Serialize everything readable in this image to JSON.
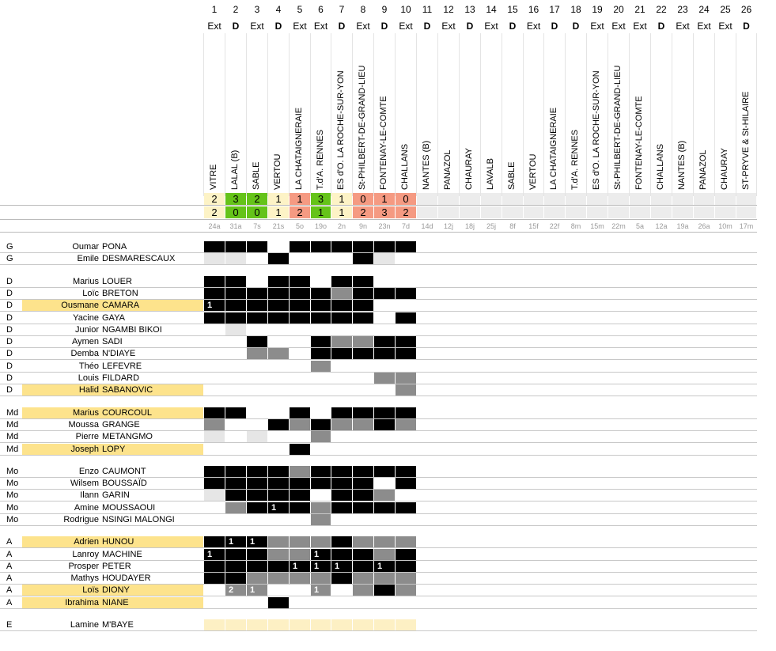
{
  "matches": [
    {
      "num": "1",
      "type": "Ext",
      "team": "VITRE",
      "scored": "2",
      "conceded": "2",
      "date": "24a",
      "result": "draw"
    },
    {
      "num": "2",
      "type": "D",
      "team": "LALAL (B)",
      "scored": "3",
      "conceded": "0",
      "date": "31a",
      "result": "win"
    },
    {
      "num": "3",
      "type": "Ext",
      "team": "SABLE",
      "scored": "2",
      "conceded": "0",
      "date": "7s",
      "result": "win"
    },
    {
      "num": "4",
      "type": "D",
      "team": "VERTOU",
      "scored": "1",
      "conceded": "1",
      "date": "21s",
      "result": "draw"
    },
    {
      "num": "5",
      "type": "Ext",
      "team": "LA CHATAIGNERAIE",
      "scored": "1",
      "conceded": "2",
      "date": "5o",
      "result": "loss"
    },
    {
      "num": "6",
      "type": "Ext",
      "team": "T.d'A. RENNES",
      "scored": "3",
      "conceded": "1",
      "date": "19o",
      "result": "win"
    },
    {
      "num": "7",
      "type": "D",
      "team": "ES d'O. LA ROCHE-SUR-YON",
      "scored": "1",
      "conceded": "1",
      "date": "2n",
      "result": "draw"
    },
    {
      "num": "8",
      "type": "Ext",
      "team": "St-PHILBERT-DE-GRAND-LIEU",
      "scored": "0",
      "conceded": "2",
      "date": "9n",
      "result": "loss"
    },
    {
      "num": "9",
      "type": "D",
      "team": "FONTENAY-LE-COMTE",
      "scored": "1",
      "conceded": "3",
      "date": "23n",
      "result": "loss"
    },
    {
      "num": "10",
      "type": "Ext",
      "team": "CHALLANS",
      "scored": "0",
      "conceded": "2",
      "date": "7d",
      "result": "loss"
    },
    {
      "num": "11",
      "type": "D",
      "team": "NANTES (B)",
      "scored": "",
      "conceded": "",
      "date": "14d",
      "result": "none"
    },
    {
      "num": "12",
      "type": "Ext",
      "team": "PANAZOL",
      "scored": "",
      "conceded": "",
      "date": "12j",
      "result": "none"
    },
    {
      "num": "13",
      "type": "D",
      "team": "CHAURAY",
      "scored": "",
      "conceded": "",
      "date": "18j",
      "result": "none"
    },
    {
      "num": "14",
      "type": "Ext",
      "team": "LAVALB",
      "scored": "",
      "conceded": "",
      "date": "25j",
      "result": "none"
    },
    {
      "num": "15",
      "type": "D",
      "team": "SABLE",
      "scored": "",
      "conceded": "",
      "date": "8f",
      "result": "none"
    },
    {
      "num": "16",
      "type": "Ext",
      "team": "VERTOU",
      "scored": "",
      "conceded": "",
      "date": "15f",
      "result": "none"
    },
    {
      "num": "17",
      "type": "D",
      "team": "LA CHATAIGNERAIE",
      "scored": "",
      "conceded": "",
      "date": "22f",
      "result": "none"
    },
    {
      "num": "18",
      "type": "D",
      "team": "T.d'A. RENNES",
      "scored": "",
      "conceded": "",
      "date": "8m",
      "result": "none"
    },
    {
      "num": "19",
      "type": "Ext",
      "team": "ES d'O. LA ROCHE-SUR-YON",
      "scored": "",
      "conceded": "",
      "date": "15m",
      "result": "none"
    },
    {
      "num": "20",
      "type": "Ext",
      "team": "St-PHILBERT-DE-GRAND-LIEU",
      "scored": "",
      "conceded": "",
      "date": "22m",
      "result": "none"
    },
    {
      "num": "21",
      "type": "Ext",
      "team": "FONTENAY-LE-COMTE",
      "scored": "",
      "conceded": "",
      "date": "5a",
      "result": "none"
    },
    {
      "num": "22",
      "type": "D",
      "team": "CHALLANS",
      "scored": "",
      "conceded": "",
      "date": "12a",
      "result": "none"
    },
    {
      "num": "23",
      "type": "Ext",
      "team": "NANTES (B)",
      "scored": "",
      "conceded": "",
      "date": "19a",
      "result": "none"
    },
    {
      "num": "24",
      "type": "Ext",
      "team": "PANAZOL",
      "scored": "",
      "conceded": "",
      "date": "26a",
      "result": "none"
    },
    {
      "num": "25",
      "type": "Ext",
      "team": "CHAURAY",
      "scored": "",
      "conceded": "",
      "date": "10m",
      "result": "none"
    },
    {
      "num": "26",
      "type": "D",
      "team": "ST-PRYVE & St-HILAIRE",
      "scored": "",
      "conceded": "",
      "date": "17m",
      "result": "none"
    }
  ],
  "result_colors": {
    "win": "#65c319",
    "draw": "#fdf3c6",
    "loss": "#f59a82",
    "none": "#ececec"
  },
  "cell_colors": {
    "k": "#000000",
    "g": "#8c8c8c",
    "l": "#e6e6e6",
    "y": "#fdf0c4",
    "w": "#ffffff"
  },
  "cell_legend": {
    "k": "starter",
    "g": "substitute",
    "l": "unused squad",
    "y": "pending",
    "w": "absent"
  },
  "groups": [
    {
      "players": [
        {
          "pos": "G",
          "first": "Oumar",
          "last": "PONA",
          "hl": false,
          "cells": "kkkwkkkkkk",
          "goals": {}
        },
        {
          "pos": "G",
          "first": "Emile",
          "last": "DESMARESCAUX",
          "hl": false,
          "cells": "llwkwwwklw",
          "goals": {}
        }
      ]
    },
    {
      "players": [
        {
          "pos": "D",
          "first": "Marius",
          "last": "LOUER",
          "hl": false,
          "cells": "kkwkkwkkww",
          "goals": {}
        },
        {
          "pos": "D",
          "first": "Loïc",
          "last": "BRETON",
          "hl": false,
          "cells": "kkkkkkgkkk",
          "goals": {}
        },
        {
          "pos": "D",
          "first": "Ousmane",
          "last": "CAMARA",
          "hl": true,
          "cells": "kkkkkkkkww",
          "goals": {
            "0": "1"
          }
        },
        {
          "pos": "D",
          "first": "Yacine",
          "last": "GAYA",
          "hl": false,
          "cells": "kkkkkkkkwk",
          "goals": {}
        },
        {
          "pos": "D",
          "first": "Junior",
          "last": "NGAMBI BIKOI",
          "hl": false,
          "cells": "wlwwwwwwww",
          "goals": {}
        },
        {
          "pos": "D",
          "first": "Aymen",
          "last": "SADI",
          "hl": false,
          "cells": "wwkwwkggkk",
          "goals": {}
        },
        {
          "pos": "D",
          "first": "Demba",
          "last": "N'DIAYE",
          "hl": false,
          "cells": "wwggwkkkkk",
          "goals": {}
        },
        {
          "pos": "D",
          "first": "Théo",
          "last": "LEFEVRE",
          "hl": false,
          "cells": "wwwwwgwwww",
          "goals": {}
        },
        {
          "pos": "D",
          "first": "Louis",
          "last": "FILDARD",
          "hl": false,
          "cells": "wwwwwwwwgg",
          "goals": {}
        },
        {
          "pos": "D",
          "first": "Halid",
          "last": "SABANOVIC",
          "hl": true,
          "cells": "wwwwwwwwwg",
          "goals": {}
        }
      ]
    },
    {
      "players": [
        {
          "pos": "Md",
          "first": "Marius",
          "last": "COURCOUL",
          "hl": true,
          "cells": "kkwwkwkkkk",
          "goals": {}
        },
        {
          "pos": "Md",
          "first": "Moussa",
          "last": "GRANGE",
          "hl": false,
          "cells": "gwwkgkggkg",
          "goals": {}
        },
        {
          "pos": "Md",
          "first": "Pierre",
          "last": "METANGMO",
          "hl": false,
          "cells": "lwlwwgwwww",
          "goals": {}
        },
        {
          "pos": "Md",
          "first": "Joseph",
          "last": "LOPY",
          "hl": true,
          "cells": "wwwwkwwwww",
          "goals": {}
        }
      ]
    },
    {
      "players": [
        {
          "pos": "Mo",
          "first": "Enzo",
          "last": "CAUMONT",
          "hl": false,
          "cells": "kkkkgkkkkk",
          "goals": {}
        },
        {
          "pos": "Mo",
          "first": "Wilsem",
          "last": "BOUSSAÏD",
          "hl": false,
          "cells": "kkkkkkkkwk",
          "goals": {}
        },
        {
          "pos": "Mo",
          "first": "Ilann",
          "last": "GARIN",
          "hl": false,
          "cells": "lkkkkwkkgw",
          "goals": {}
        },
        {
          "pos": "Mo",
          "first": "Amine",
          "last": "MOUSSAOUI",
          "hl": false,
          "cells": "wgkkkgkkkk",
          "goals": {
            "3": "1"
          }
        },
        {
          "pos": "Mo",
          "first": "Rodrigue",
          "last": "NSINGI MALONGI",
          "hl": false,
          "cells": "wwwwwgwwww",
          "goals": {}
        }
      ]
    },
    {
      "players": [
        {
          "pos": "A",
          "first": "Adrien",
          "last": "HUNOU",
          "hl": true,
          "cells": "kkkgggkggg",
          "goals": {
            "1": "1",
            "2": "1"
          }
        },
        {
          "pos": "A",
          "first": "Lanroy",
          "last": "MACHINE",
          "hl": false,
          "cells": "kkkggkkkgk",
          "goals": {
            "0": "1",
            "5": "1"
          }
        },
        {
          "pos": "A",
          "first": "Prosper",
          "last": "PETER",
          "hl": false,
          "cells": "kkkkkkkkkk",
          "goals": {
            "4": "1",
            "5": "1",
            "6": "1",
            "8": "1"
          }
        },
        {
          "pos": "A",
          "first": "Mathys",
          "last": "HOUDAYER",
          "hl": false,
          "cells": "kkggggkggg",
          "goals": {}
        },
        {
          "pos": "A",
          "first": "Loïs",
          "last": "DIONY",
          "hl": true,
          "cells": "wggwwgwgkg",
          "goals": {
            "1": "2",
            "2": "1",
            "5": "1"
          }
        },
        {
          "pos": "A",
          "first": "Ibrahima",
          "last": "NIANE",
          "hl": true,
          "cells": "wwwkwwwwww",
          "goals": {}
        }
      ]
    },
    {
      "players": [
        {
          "pos": "E",
          "first": "Lamine",
          "last": "M'BAYE",
          "hl": false,
          "cells": "yyyyyyyyyy",
          "goals": {}
        }
      ]
    }
  ]
}
